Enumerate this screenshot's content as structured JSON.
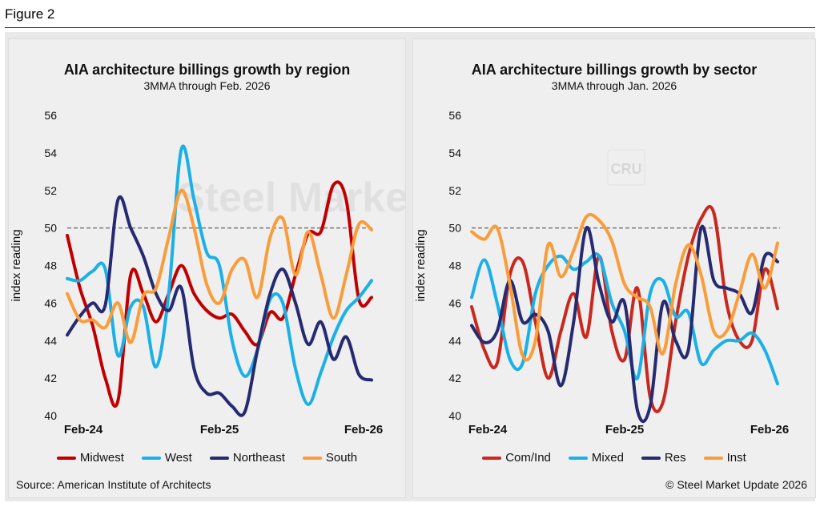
{
  "figure_label": "Figure 2",
  "source": "Source: American Institute of Architects",
  "copyright": "© Steel Market Update 2026",
  "watermark": "Steel Market Update",
  "watermark_logo": "CRU",
  "colors": {
    "red": "#c00000",
    "red2": "#c8281e",
    "cyan": "#1ab0e8",
    "navy": "#262a70",
    "orange": "#f99d3a"
  },
  "chart_data": [
    {
      "type": "line",
      "title": "AIA architecture billings growth by region",
      "subtitle": "3MMA through Feb. 2026",
      "ylabel": "index reading",
      "xlabel": "",
      "ylim": [
        40,
        56
      ],
      "yticks": [
        "40",
        "42",
        "44",
        "46",
        "48",
        "50",
        "52",
        "54",
        "56"
      ],
      "xtick_labels": [
        "Feb-24",
        "Feb-25",
        "Feb-26"
      ],
      "reference_line": 50,
      "x": [
        "Feb-24",
        "Mar-24",
        "Apr-24",
        "May-24",
        "Jun-24",
        "Jul-24",
        "Aug-24",
        "Sep-24",
        "Oct-24",
        "Nov-24",
        "Dec-24",
        "Jan-25",
        "Feb-25",
        "Mar-25",
        "Apr-25",
        "May-25",
        "Jun-25",
        "Jul-25",
        "Aug-25",
        "Sep-25",
        "Oct-25",
        "Nov-25",
        "Dec-25",
        "Jan-26",
        "Feb-26"
      ],
      "legend_position": "bottom",
      "series": [
        {
          "name": "Midwest",
          "color": "#c00000",
          "values": [
            49.6,
            46.8,
            44.8,
            42.0,
            40.8,
            47.5,
            46.5,
            45.0,
            46.5,
            48.0,
            46.5,
            45.6,
            45.2,
            45.4,
            44.5,
            43.8,
            45.5,
            45.2,
            47.5,
            49.7,
            49.8,
            52.3,
            51.5,
            46.2,
            46.3
          ]
        },
        {
          "name": "West",
          "color": "#1ab0e8",
          "values": [
            47.3,
            47.2,
            47.7,
            47.8,
            43.2,
            45.8,
            45.8,
            42.6,
            46.5,
            54.2,
            51.5,
            48.7,
            48.0,
            44.0,
            42.1,
            43.5,
            46.2,
            46.0,
            42.5,
            40.6,
            42.3,
            44.2,
            45.6,
            46.3,
            47.2
          ]
        },
        {
          "name": "Northeast",
          "color": "#262a70",
          "values": [
            44.3,
            45.3,
            46.0,
            45.9,
            51.5,
            50.0,
            48.5,
            46.5,
            45.6,
            46.8,
            42.5,
            41.2,
            41.2,
            40.5,
            40.2,
            43.5,
            46.5,
            47.8,
            46.0,
            43.8,
            45.0,
            43.0,
            44.2,
            42.2,
            41.9
          ]
        },
        {
          "name": "South",
          "color": "#f99d3a",
          "values": [
            46.5,
            45.1,
            45.1,
            44.7,
            46.0,
            43.9,
            46.4,
            46.8,
            49.5,
            52.0,
            50.0,
            47.0,
            46.0,
            47.8,
            48.3,
            46.3,
            49.5,
            50.5,
            47.5,
            49.8,
            47.5,
            45.2,
            47.5,
            50.2,
            49.9
          ]
        }
      ]
    },
    {
      "type": "line",
      "title": "AIA architecture billings growth by sector",
      "subtitle": "3MMA through Jan. 2026",
      "ylabel": "index reading",
      "xlabel": "",
      "ylim": [
        40,
        56
      ],
      "yticks": [
        "40",
        "42",
        "44",
        "46",
        "48",
        "50",
        "52",
        "54",
        "56"
      ],
      "xtick_labels": [
        "Feb-24",
        "Feb-25",
        "Feb-26"
      ],
      "reference_line": 50,
      "x": [
        "Feb-24",
        "Mar-24",
        "Apr-24",
        "May-24",
        "Jun-24",
        "Jul-24",
        "Aug-24",
        "Sep-24",
        "Oct-24",
        "Nov-24",
        "Dec-24",
        "Jan-25",
        "Feb-25",
        "Mar-25",
        "Apr-25",
        "May-25",
        "Jun-25",
        "Jul-25",
        "Aug-25",
        "Sep-25",
        "Oct-25",
        "Nov-25",
        "Dec-25",
        "Jan-26",
        "Feb-26"
      ],
      "legend_position": "bottom",
      "series": [
        {
          "name": "Com/Ind",
          "color": "#c8281e",
          "values": [
            45.8,
            43.5,
            42.8,
            47.5,
            48.2,
            45.0,
            42.0,
            44.5,
            46.5,
            44.2,
            48.5,
            44.5,
            43.0,
            46.8,
            41.0,
            40.7,
            45.0,
            48.5,
            50.5,
            50.8,
            46.0,
            44.0,
            44.0,
            47.8,
            45.7
          ]
        },
        {
          "name": "Mixed",
          "color": "#1ab0e8",
          "values": [
            46.3,
            48.3,
            46.0,
            43.0,
            42.8,
            46.5,
            48.0,
            48.5,
            47.8,
            48.2,
            48.5,
            46.0,
            44.5,
            42.0,
            46.5,
            47.2,
            45.3,
            45.5,
            42.8,
            43.5,
            44.0,
            44.0,
            44.4,
            43.5,
            41.7
          ]
        },
        {
          "name": "Res",
          "color": "#262a70",
          "values": [
            44.8,
            43.9,
            44.5,
            47.2,
            45.0,
            45.4,
            44.5,
            41.6,
            45.0,
            50.0,
            47.0,
            45.0,
            46.0,
            40.3,
            40.5,
            46.0,
            44.0,
            43.5,
            50.0,
            47.2,
            46.8,
            46.5,
            45.5,
            48.5,
            48.2
          ]
        },
        {
          "name": "Inst",
          "color": "#f99d3a",
          "values": [
            49.8,
            49.4,
            50.0,
            47.0,
            43.2,
            44.0,
            49.1,
            47.4,
            48.8,
            50.6,
            50.4,
            49.3,
            47.0,
            46.3,
            45.8,
            43.3,
            47.0,
            49.1,
            47.5,
            44.5,
            44.5,
            46.5,
            48.6,
            46.8,
            49.2
          ]
        }
      ]
    }
  ]
}
